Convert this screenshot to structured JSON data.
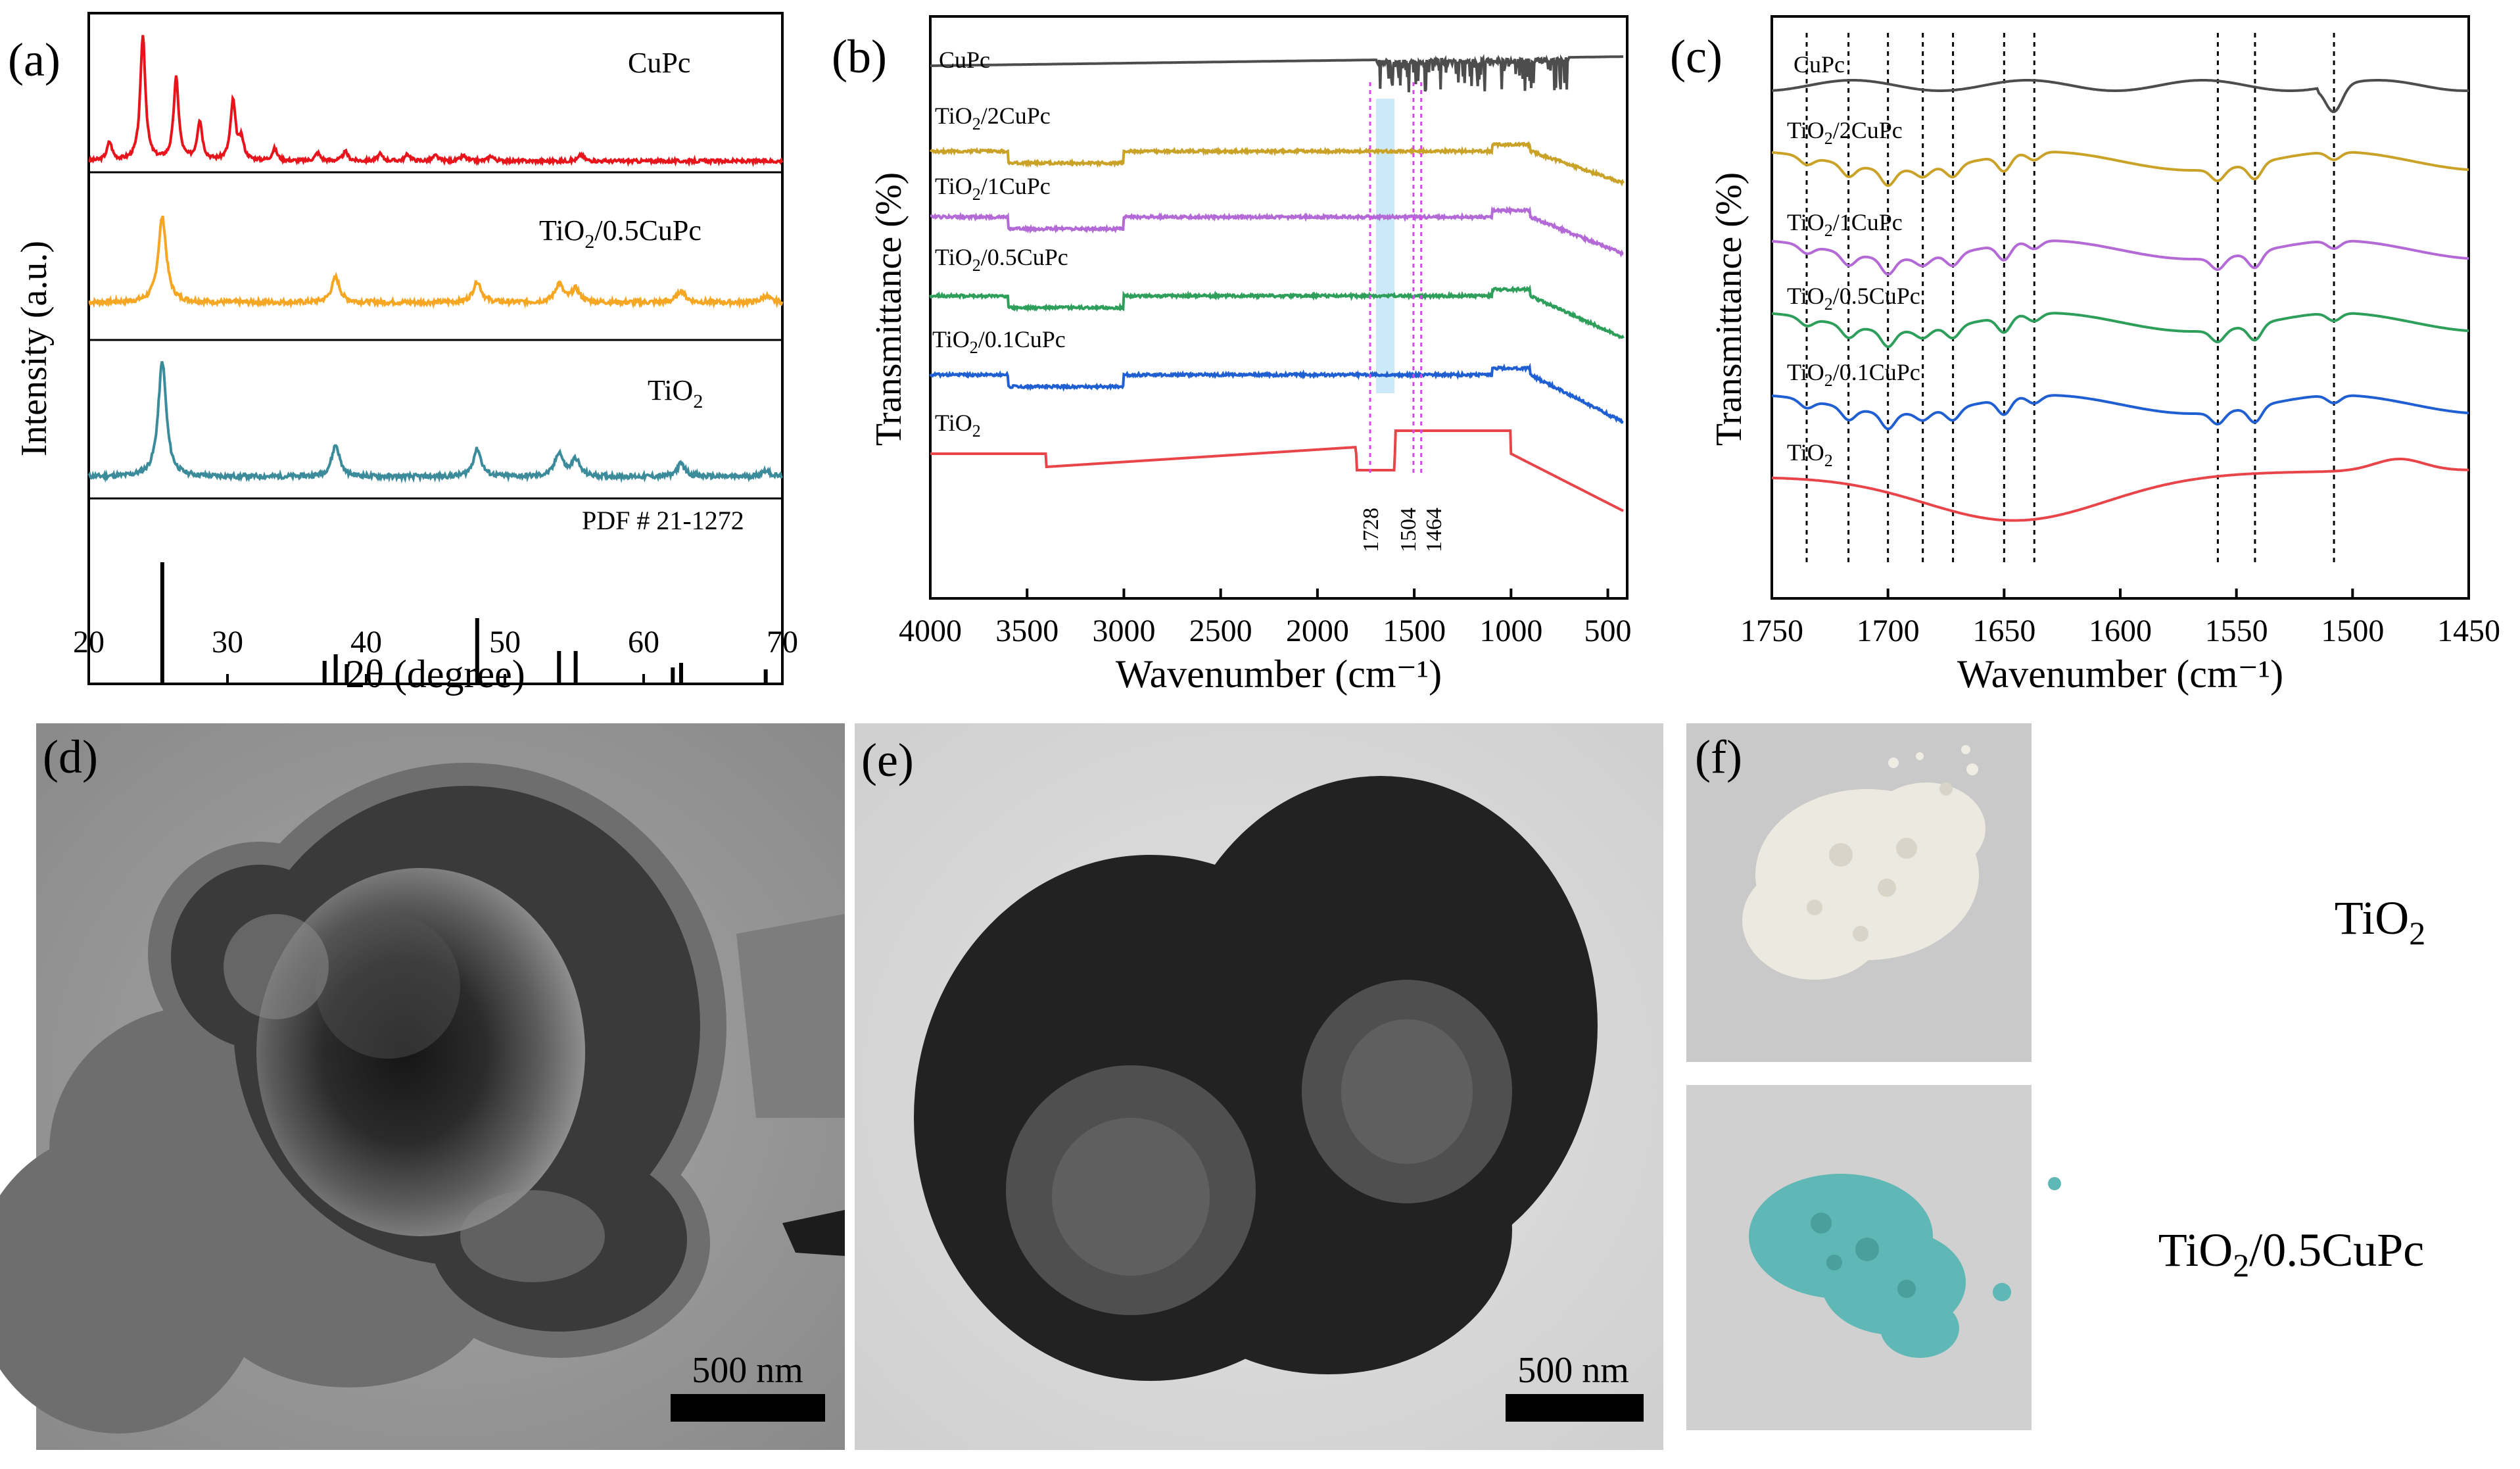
{
  "panels": {
    "a": {
      "label": "(a)",
      "ylabel": "Intensity (a.u.)",
      "xlabel": "2θ (degree)",
      "xticks": [
        "20",
        "30",
        "40",
        "50",
        "60",
        "70"
      ],
      "subplots": [
        {
          "name": "CuPc",
          "color": "#e8141b"
        },
        {
          "name": "TiO2/0.5CuPc",
          "color": "#f5a623"
        },
        {
          "name": "TiO2",
          "color": "#3b8b9b"
        },
        {
          "name": "PDF # 21-1272",
          "color": "#000000"
        }
      ]
    },
    "b": {
      "label": "(b)",
      "ylabel": "Transmittance (%)",
      "xlabel": "Wavenumber (cm⁻¹)",
      "xticks": [
        "4000",
        "3500",
        "3000",
        "2500",
        "2000",
        "1500",
        "1000",
        "500"
      ],
      "annotations": [
        "1728",
        "1504",
        "1464"
      ]
    },
    "c": {
      "label": "(c)",
      "ylabel": "Transmittance (%)",
      "xlabel": "Wavenumber (cm⁻¹)",
      "xticks": [
        "1750",
        "1700",
        "1650",
        "1600",
        "1550",
        "1500",
        "1450"
      ]
    },
    "d": {
      "label": "(d)",
      "scale_bar": "500 nm"
    },
    "e": {
      "label": "(e)",
      "scale_bar": "500 nm"
    },
    "f": {
      "label": "(f)",
      "caption_top": "TiO2",
      "caption_bottom": "TiO2/0.5CuPc"
    }
  },
  "ftir_series": [
    {
      "name": "CuPc",
      "color": "#4d4d4d"
    },
    {
      "name": "TiO2/2CuPc",
      "color": "#c9a227"
    },
    {
      "name": "TiO2/1CuPc",
      "color": "#b36ad6"
    },
    {
      "name": "TiO2/0.5CuPc",
      "color": "#2e9e5b"
    },
    {
      "name": "TiO2/0.1CuPc",
      "color": "#1f5fd1"
    },
    {
      "name": "TiO2",
      "color": "#e8454a"
    }
  ],
  "chart_data": [
    {
      "type": "line",
      "title": "",
      "xlabel": "2θ (degree)",
      "ylabel": "Intensity (a.u.)",
      "xlim": [
        20,
        70
      ],
      "series": [
        {
          "name": "CuPc",
          "peaks_2theta": [
            21.5,
            23.9,
            26.3,
            28.0,
            30.4,
            31.0,
            33.4
          ]
        },
        {
          "name": "TiO2/0.5CuPc",
          "peaks_2theta": [
            25.3,
            37.8,
            48.0,
            53.9,
            55.1,
            62.7,
            68.8
          ]
        },
        {
          "name": "TiO2",
          "peaks_2theta": [
            25.3,
            37.8,
            48.0,
            53.9,
            55.1,
            62.7,
            68.8
          ]
        }
      ],
      "reference": {
        "name": "PDF # 21-1272",
        "lines_2theta": [
          25.3,
          37.0,
          37.8,
          38.6,
          48.0,
          53.9,
          55.1,
          62.1,
          62.7,
          68.8
        ]
      },
      "grid": false
    },
    {
      "type": "line",
      "xlabel": "Wavenumber (cm⁻¹)",
      "ylabel": "Transmittance (%)",
      "xlim": [
        4000,
        400
      ],
      "series": [
        {
          "name": "CuPc"
        },
        {
          "name": "TiO2/2CuPc"
        },
        {
          "name": "TiO2/1CuPc"
        },
        {
          "name": "TiO2/0.5CuPc"
        },
        {
          "name": "TiO2/0.1CuPc"
        },
        {
          "name": "TiO2"
        }
      ],
      "marked_wavenumbers": [
        1728,
        1504,
        1464
      ],
      "grid": false
    },
    {
      "type": "line",
      "xlabel": "Wavenumber (cm⁻¹)",
      "ylabel": "Transmittance (%)",
      "xlim": [
        1750,
        1450
      ],
      "series": [
        {
          "name": "CuPc"
        },
        {
          "name": "TiO2/2CuPc"
        },
        {
          "name": "TiO2/1CuPc"
        },
        {
          "name": "TiO2/0.5CuPc"
        },
        {
          "name": "TiO2/0.1CuPc"
        },
        {
          "name": "TiO2"
        }
      ],
      "marked_wavenumbers": [
        1735,
        1717,
        1700,
        1685,
        1672,
        1650,
        1637,
        1558,
        1542,
        1508
      ],
      "grid": false
    }
  ]
}
